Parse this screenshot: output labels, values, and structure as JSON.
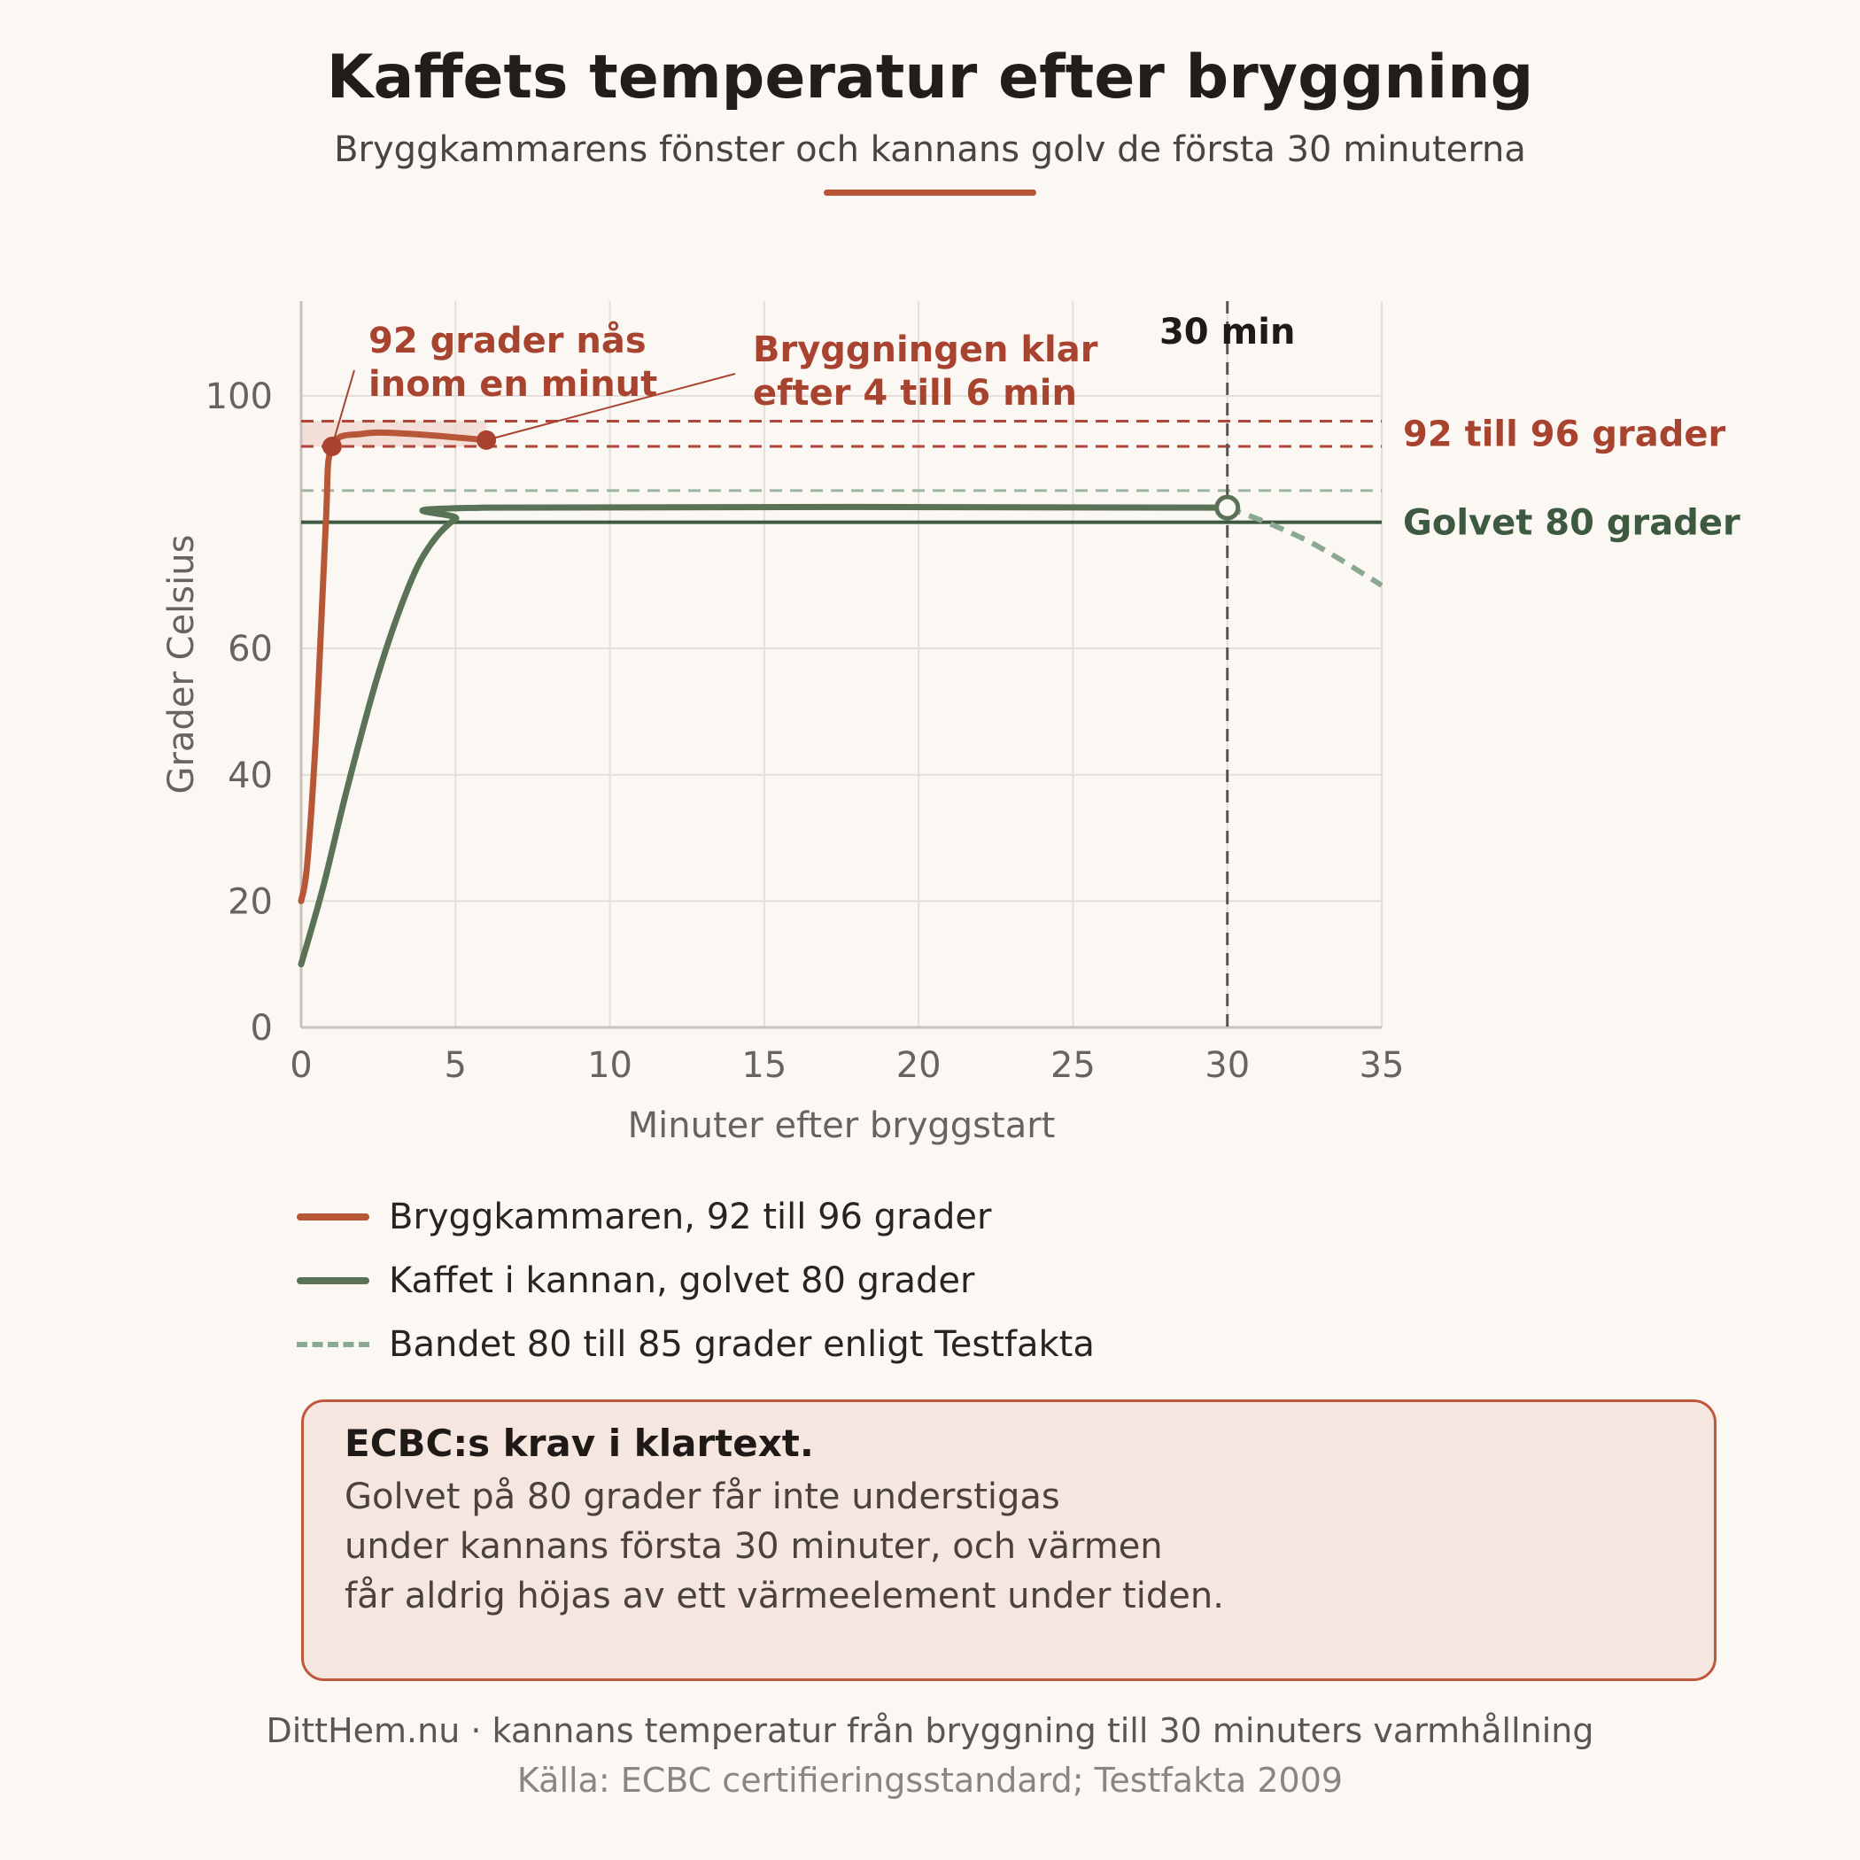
{
  "header": {
    "title": "Kaffets temperatur efter bryggning",
    "subtitle": "Bryggkammarens fönster och kannans golv de första 30 minuterna"
  },
  "chart_data": {
    "type": "line",
    "xlabel": "Minuter efter bryggstart",
    "ylabel": "Grader Celsius",
    "xlim": [
      0,
      35
    ],
    "ylim": [
      0,
      115
    ],
    "x_ticks": [
      0,
      5,
      10,
      15,
      20,
      25,
      30,
      35
    ],
    "y_ticks": [
      0,
      20,
      40,
      60,
      100
    ],
    "grid": true,
    "series": [
      {
        "name": "Bryggkammaren, 92 till 96 grader",
        "color": "#b85638",
        "points": [
          [
            0,
            20
          ],
          [
            0.2,
            26
          ],
          [
            0.5,
            48
          ],
          [
            0.8,
            80
          ],
          [
            1,
            92
          ],
          [
            2,
            94
          ],
          [
            3.5,
            94
          ],
          [
            6,
            93
          ]
        ],
        "markers": [
          [
            1,
            92
          ],
          [
            6,
            93
          ]
        ]
      },
      {
        "name": "Kaffet i kannan, golvet 80 grader",
        "color": "#5a7357",
        "points": [
          [
            0,
            10
          ],
          [
            0.7,
            22
          ],
          [
            1.5,
            38
          ],
          [
            2.5,
            56
          ],
          [
            3.5,
            70
          ],
          [
            4.2,
            76.5
          ],
          [
            5,
            80.5
          ],
          [
            6,
            82.3
          ],
          [
            30,
            82.3
          ]
        ],
        "end_marker": [
          30,
          82.3
        ]
      },
      {
        "name": "",
        "color": "#8ba890",
        "style": "dashed",
        "points": [
          [
            30,
            82.3
          ],
          [
            31.5,
            79.5
          ],
          [
            33,
            76
          ],
          [
            35,
            70
          ]
        ]
      }
    ],
    "reference_lines": [
      {
        "y": 96,
        "style": "dashed",
        "color": "#b0453a"
      },
      {
        "y": 92,
        "style": "dashed",
        "color": "#b0453a"
      },
      {
        "y": 85,
        "style": "dashed",
        "color": "#9db5a0"
      },
      {
        "y": 80,
        "style": "solid",
        "color": "#3d5a40"
      },
      {
        "x": 30,
        "style": "dashed",
        "color": "#555555"
      }
    ],
    "shaded_band": {
      "y_from": 92,
      "y_to": 96,
      "x_from": 0,
      "x_to": 6,
      "color": "#f0d4cb"
    },
    "annotations": {
      "reached": [
        "92 grader nås",
        "inom en minut"
      ],
      "done": [
        "Bryggningen klar",
        "efter 4 till 6 min"
      ],
      "vline_label": "30 min",
      "band_label": "92 till 96 grader",
      "floor_label": "Golvet 80 grader"
    }
  },
  "legend": {
    "items": [
      {
        "label": "Bryggkammaren, 92 till 96 grader",
        "color": "#b85638",
        "style": "solid"
      },
      {
        "label": "Kaffet i kannan, golvet 80 grader",
        "color": "#5a7357",
        "style": "solid"
      },
      {
        "label": "Bandet 80 till 85 grader enligt Testfakta",
        "color": "#8ba890",
        "style": "dashed"
      }
    ]
  },
  "callout": {
    "heading": "ECBC:s krav i klartext.",
    "lines": [
      "Golvet på 80 grader får inte understigas",
      "under kannans första 30 minuter, och värmen",
      "får aldrig höjas av ett värmeelement under tiden."
    ]
  },
  "footer": {
    "line1": "DittHem.nu · kannans temperatur från bryggning till 30 minuters varmhållning",
    "line2": "Källa: ECBC certifieringsstandard; Testfakta 2009"
  }
}
